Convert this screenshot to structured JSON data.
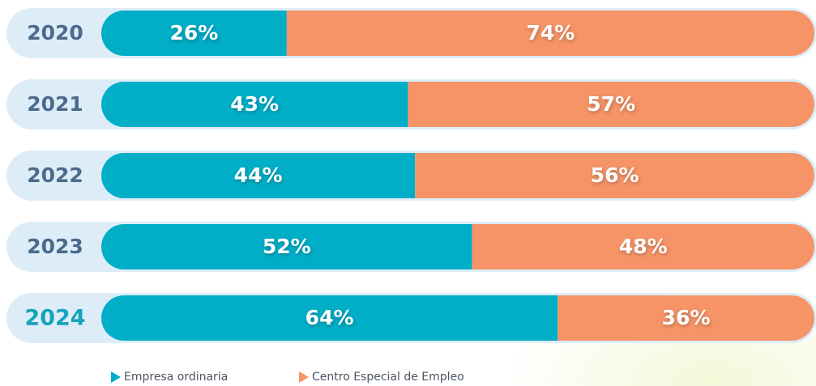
{
  "chart_data": {
    "type": "bar",
    "orientation": "horizontal",
    "stacked": true,
    "categories": [
      "2020",
      "2021",
      "2022",
      "2023",
      "2024"
    ],
    "series": [
      {
        "name": "Empresa ordinaria",
        "color": "#00aec7",
        "values": [
          26,
          43,
          44,
          52,
          64
        ],
        "value_labels": [
          "26%",
          "43%",
          "44%",
          "52%",
          "64%"
        ]
      },
      {
        "name": "Centro Especial de Empleo",
        "color": "#f69467",
        "values": [
          74,
          57,
          56,
          48,
          36
        ],
        "value_labels": [
          "74%",
          "57%",
          "56%",
          "48%",
          "36%"
        ]
      }
    ],
    "xlim": [
      0,
      100
    ],
    "legend": "bottom"
  }
}
